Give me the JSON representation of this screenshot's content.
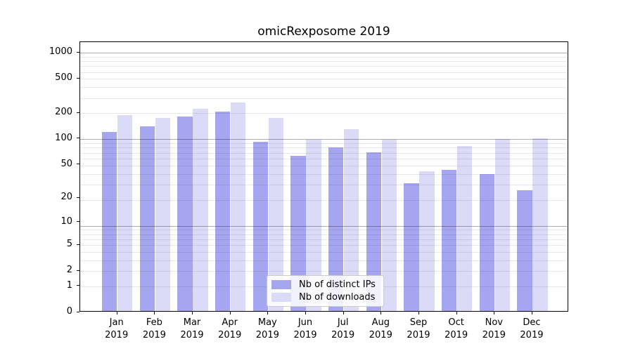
{
  "title": "omicRexposome 2019",
  "chart_data": {
    "type": "bar",
    "title": "omicRexposome 2019",
    "x_categories": [
      "Jan 2019",
      "Feb 2019",
      "Mar 2019",
      "Apr 2019",
      "May 2019",
      "Jun 2019",
      "Jul 2019",
      "Aug 2019",
      "Sep 2019",
      "Oct 2019",
      "Nov 2019",
      "Dec 2019"
    ],
    "series": [
      {
        "name": "Nb of distinct IPs",
        "color": "#a5a5f0",
        "values": [
          116,
          135,
          176,
          200,
          90,
          61,
          76,
          67,
          29,
          42,
          37,
          24
        ]
      },
      {
        "name": "Nb of downloads",
        "color": "#dbdbf8",
        "values": [
          181,
          168,
          216,
          255,
          170,
          94,
          126,
          95,
          40,
          80,
          96,
          98
        ]
      }
    ],
    "y_scale": "log10(value+1)",
    "y_ticks": [
      0,
      1,
      2,
      5,
      10,
      20,
      50,
      100,
      200,
      500,
      1000
    ],
    "y_max": 1325,
    "grid": "on (minor light, decade lines darker, drawn over bars)",
    "legend_position": "inside plot, lower center"
  },
  "legend": {
    "items": [
      {
        "label": "Nb of distinct IPs",
        "color": "#a5a5f0"
      },
      {
        "label": "Nb of downloads",
        "color": "#dbdbf8"
      }
    ]
  },
  "colors": {
    "distinct_ips_bar": "#a5a5f0",
    "downloads_bar": "#dbdbf8",
    "spine": "#000000",
    "major_grid": "#aaaaaa",
    "minor_grid": "#e8e8e8",
    "background": "#ffffff"
  }
}
